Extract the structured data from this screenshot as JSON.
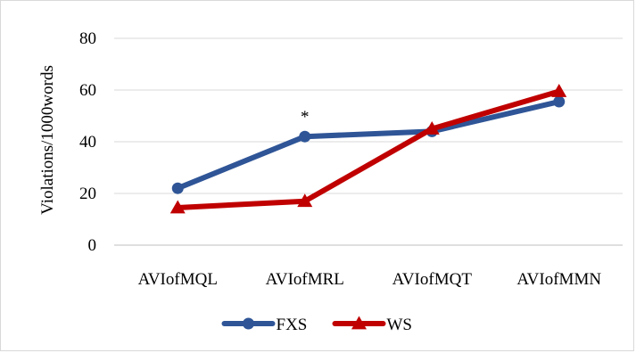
{
  "chart_data": {
    "type": "line",
    "categories": [
      "AVIofMQL",
      "AVIofMRL",
      "AVIofMQT",
      "AVIofMMN"
    ],
    "series": [
      {
        "name": "FXS",
        "values": [
          22,
          42,
          44,
          55.5
        ],
        "color": "#2f5597",
        "marker": "circle"
      },
      {
        "name": "WS",
        "values": [
          14.5,
          17,
          45,
          59.5
        ],
        "color": "#c00000",
        "marker": "triangle"
      }
    ],
    "ylabel": "Violations/1000words",
    "xlabel": "",
    "ylim": [
      0,
      80
    ],
    "yticks": [
      0,
      20,
      40,
      60,
      80
    ],
    "grid": true,
    "legend_position": "bottom",
    "annotations": [
      {
        "text": "*",
        "category": "AVIofMRL",
        "series": "FXS"
      }
    ]
  }
}
